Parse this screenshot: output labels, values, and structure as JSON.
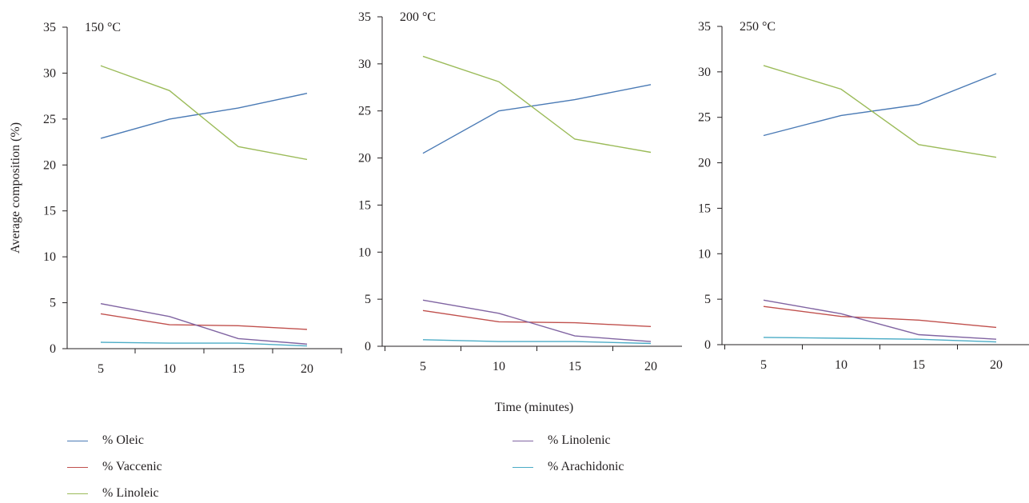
{
  "figure": {
    "ylabel": "Average composition (%)",
    "xlabel": "Time (minutes)"
  },
  "legend": [
    {
      "label": "% Oleic",
      "color": "#4a7ab5"
    },
    {
      "label": "% Vaccenic",
      "color": "#c0504d"
    },
    {
      "label": "% Linoleic",
      "color": "#9bbb59"
    },
    {
      "label": "% Linolenic",
      "color": "#8064a2"
    },
    {
      "label": "% Arachidonic",
      "color": "#4bacc6"
    }
  ],
  "chart_data": [
    {
      "type": "line",
      "title": "150 °C",
      "x": [
        5,
        10,
        15,
        20
      ],
      "ylim": [
        0,
        35
      ],
      "yticks": [
        0,
        5,
        10,
        15,
        20,
        25,
        30,
        35
      ],
      "grid": false,
      "series": [
        {
          "name": "% Oleic",
          "color": "#4a7ab5",
          "values": [
            22.9,
            25.0,
            26.2,
            27.8
          ]
        },
        {
          "name": "% Vaccenic",
          "color": "#c0504d",
          "values": [
            3.8,
            2.6,
            2.5,
            2.1
          ]
        },
        {
          "name": "% Linoleic",
          "color": "#9bbb59",
          "values": [
            30.8,
            28.1,
            22.0,
            20.6
          ]
        },
        {
          "name": "% Linolenic",
          "color": "#8064a2",
          "values": [
            4.9,
            3.5,
            1.1,
            0.5
          ]
        },
        {
          "name": "% Arachidonic",
          "color": "#4bacc6",
          "values": [
            0.7,
            0.6,
            0.6,
            0.3
          ]
        }
      ]
    },
    {
      "type": "line",
      "title": "200 °C",
      "x": [
        5,
        10,
        15,
        20
      ],
      "ylim": [
        0,
        35
      ],
      "yticks": [
        0,
        5,
        10,
        15,
        20,
        25,
        30,
        35
      ],
      "grid": false,
      "series": [
        {
          "name": "% Oleic",
          "color": "#4a7ab5",
          "values": [
            20.5,
            25.0,
            26.2,
            27.8
          ]
        },
        {
          "name": "% Vaccenic",
          "color": "#c0504d",
          "values": [
            3.8,
            2.6,
            2.5,
            2.1
          ]
        },
        {
          "name": "% Linoleic",
          "color": "#9bbb59",
          "values": [
            30.8,
            28.1,
            22.0,
            20.6
          ]
        },
        {
          "name": "% Linolenic",
          "color": "#8064a2",
          "values": [
            4.9,
            3.5,
            1.1,
            0.5
          ]
        },
        {
          "name": "% Arachidonic",
          "color": "#4bacc6",
          "values": [
            0.7,
            0.5,
            0.5,
            0.3
          ]
        }
      ]
    },
    {
      "type": "line",
      "title": "250 °C",
      "x": [
        5,
        10,
        15,
        20
      ],
      "ylim": [
        0,
        35
      ],
      "yticks": [
        0,
        5,
        10,
        15,
        20,
        25,
        30,
        35
      ],
      "grid": false,
      "series": [
        {
          "name": "% Oleic",
          "color": "#4a7ab5",
          "values": [
            23.0,
            25.2,
            26.4,
            29.8
          ]
        },
        {
          "name": "% Vaccenic",
          "color": "#c0504d",
          "values": [
            4.2,
            3.1,
            2.7,
            1.9
          ]
        },
        {
          "name": "% Linoleic",
          "color": "#9bbb59",
          "values": [
            30.7,
            28.1,
            22.0,
            20.6
          ]
        },
        {
          "name": "% Linolenic",
          "color": "#8064a2",
          "values": [
            4.9,
            3.4,
            1.1,
            0.6
          ]
        },
        {
          "name": "% Arachidonic",
          "color": "#4bacc6",
          "values": [
            0.8,
            0.7,
            0.6,
            0.3
          ]
        }
      ]
    }
  ]
}
